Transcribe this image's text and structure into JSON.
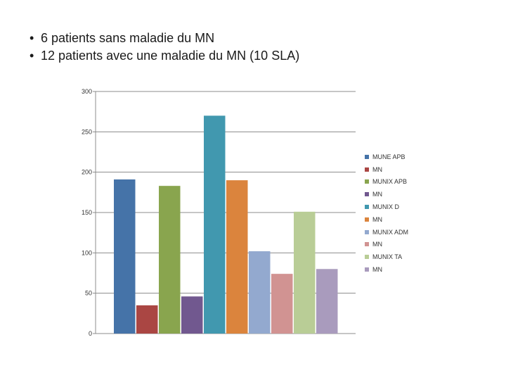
{
  "bullets": [
    "6 patients sans maladie du MN",
    "12 patients avec une maladie du MN (10 SLA)"
  ],
  "bullet_symbol": "•",
  "chart_data": {
    "type": "bar",
    "categories": [
      "MUNE APB",
      "MN",
      "MUNIX APB",
      "MN",
      "MUNIX D",
      "MN",
      "MUNIX ADM",
      "MN",
      "MUNIX TA",
      "MN"
    ],
    "values": [
      191,
      35,
      183,
      46,
      270,
      190,
      102,
      74,
      151,
      80
    ],
    "colors": [
      "#4573A8",
      "#AA4643",
      "#89A54E",
      "#71588F",
      "#4198AF",
      "#DB843D",
      "#93A9CF",
      "#D19392",
      "#B9CD96",
      "#A99BBD"
    ],
    "ylim": [
      0,
      300
    ],
    "yticks": [
      0,
      50,
      100,
      150,
      200,
      250,
      300
    ],
    "grid": true,
    "legend_position": "right",
    "title": "",
    "xlabel": "",
    "ylabel": ""
  }
}
